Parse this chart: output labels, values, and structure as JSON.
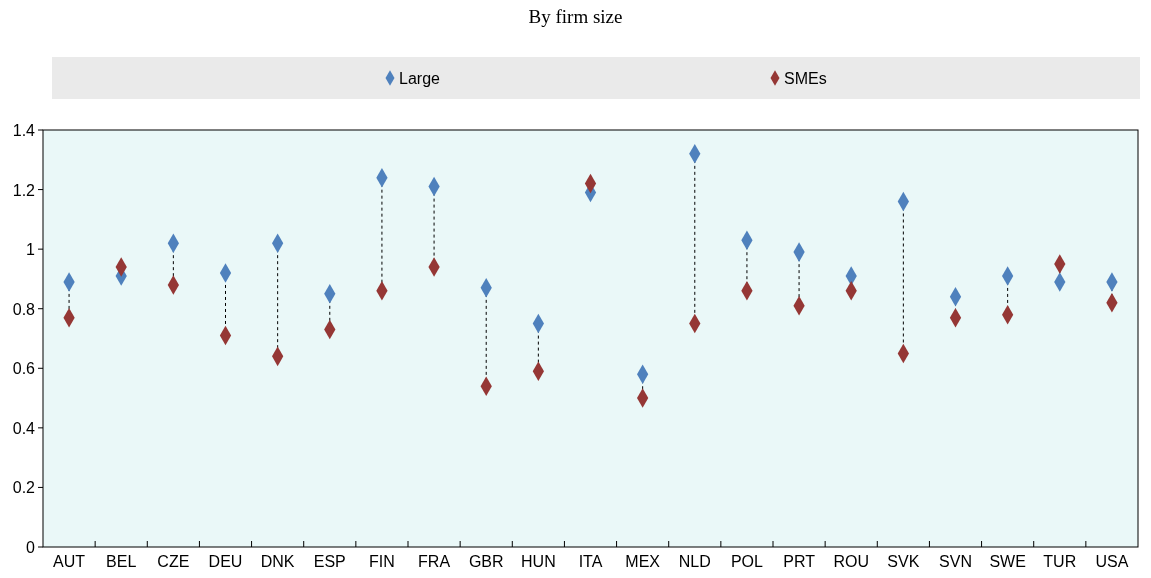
{
  "chart_data": {
    "type": "scatter",
    "title": "By firm size",
    "categories": [
      "AUT",
      "BEL",
      "CZE",
      "DEU",
      "DNK",
      "ESP",
      "FIN",
      "FRA",
      "GBR",
      "HUN",
      "ITA",
      "MEX",
      "NLD",
      "POL",
      "PRT",
      "ROU",
      "SVK",
      "SVN",
      "SWE",
      "TUR",
      "USA"
    ],
    "series": [
      {
        "name": "Large",
        "color": "#4f81bd",
        "values": [
          0.89,
          0.91,
          1.02,
          0.92,
          1.02,
          0.85,
          1.24,
          1.21,
          0.87,
          0.75,
          1.19,
          0.58,
          1.32,
          1.03,
          0.99,
          0.91,
          1.16,
          0.84,
          0.91,
          0.89,
          0.89
        ]
      },
      {
        "name": "SMEs",
        "color": "#953735",
        "values": [
          0.77,
          0.94,
          0.88,
          0.71,
          0.64,
          0.73,
          0.86,
          0.94,
          0.54,
          0.59,
          1.22,
          0.5,
          0.75,
          0.86,
          0.81,
          0.86,
          0.65,
          0.77,
          0.78,
          0.95,
          0.82
        ]
      }
    ],
    "ylim": [
      0,
      1.4
    ],
    "yticks": [
      0,
      0.2,
      0.4,
      0.6,
      0.8,
      1,
      1.2,
      1.4
    ],
    "grid": false,
    "legend": "top",
    "marker": "diamond"
  }
}
